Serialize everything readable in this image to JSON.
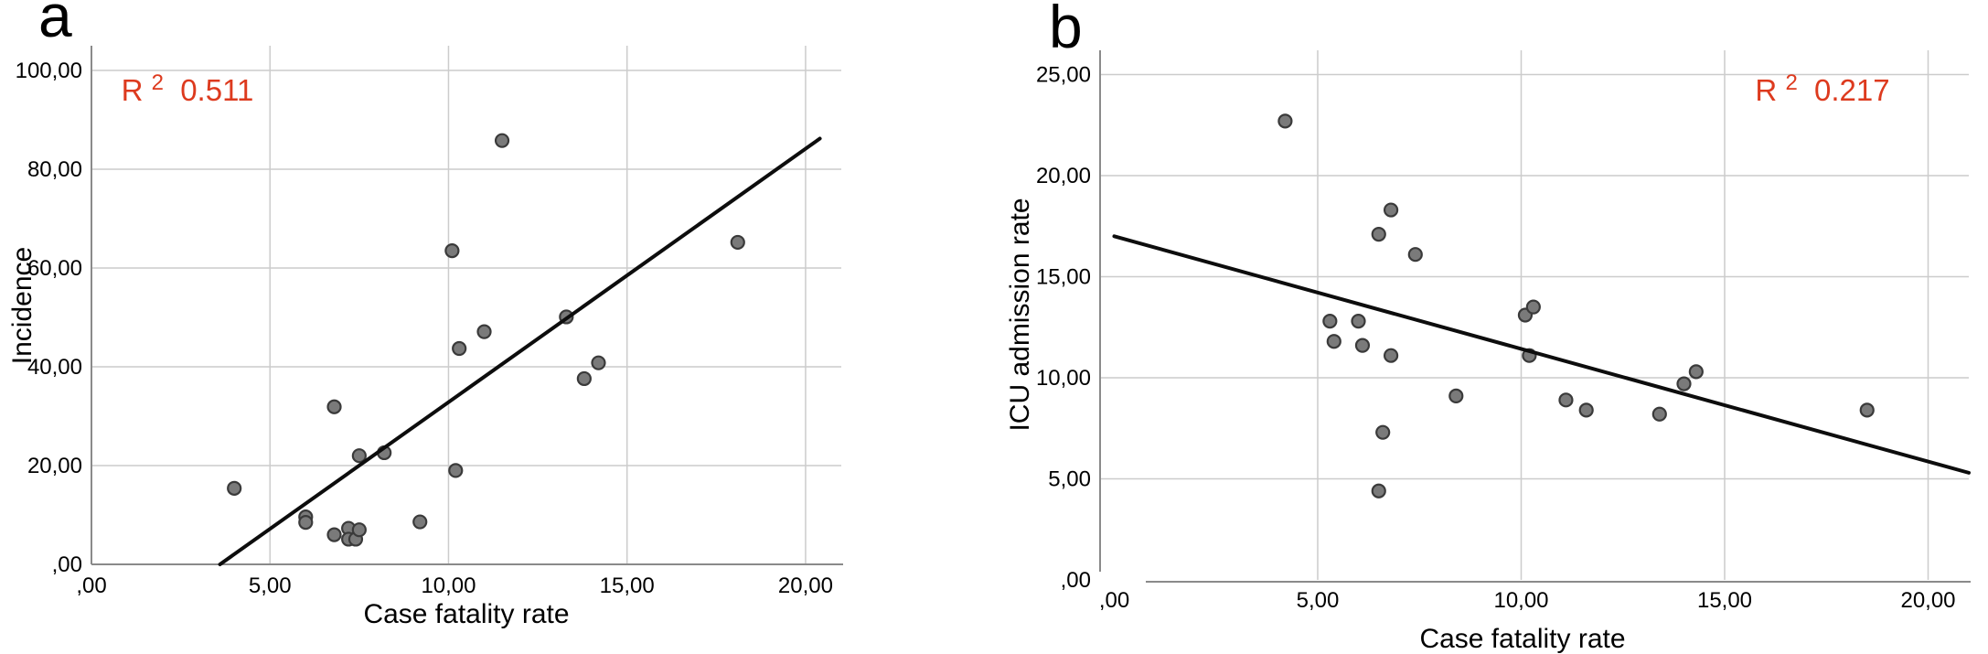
{
  "figure": {
    "background": "#ffffff",
    "accent_red": "#dd3a1e",
    "point_fill": "#7a7a7a",
    "point_stroke": "#3a3a3a",
    "grid_color": "#cccccc",
    "axis_color": "#8a8a8a",
    "fit_line_color": "#0d0d0d",
    "text_color": "#000000"
  },
  "chart_data": [
    {
      "type": "scatter",
      "panel_letter": "a",
      "annotation": {
        "base": "R",
        "sup": "2",
        "value": "0.511"
      },
      "xlabel": "Case fatality rate",
      "ylabel": "Incidence",
      "xlim": [
        0,
        21
      ],
      "ylim": [
        0,
        105
      ],
      "grid": true,
      "legend": null,
      "xticks": [
        {
          "v": 0,
          "label": ",00"
        },
        {
          "v": 5,
          "label": "5,00"
        },
        {
          "v": 10,
          "label": "10,00"
        },
        {
          "v": 15,
          "label": "15,00"
        },
        {
          "v": 20,
          "label": "20,00"
        }
      ],
      "yticks": [
        {
          "v": 0,
          "label": ",00"
        },
        {
          "v": 20,
          "label": "20,00"
        },
        {
          "v": 40,
          "label": "40,00"
        },
        {
          "v": 60,
          "label": "60,00"
        },
        {
          "v": 80,
          "label": "80,00"
        },
        {
          "v": 100,
          "label": "100,00"
        }
      ],
      "points": [
        [
          4.0,
          15.4
        ],
        [
          6.0,
          9.6
        ],
        [
          6.0,
          8.5
        ],
        [
          6.8,
          6.0
        ],
        [
          6.8,
          31.9
        ],
        [
          7.2,
          7.3
        ],
        [
          7.2,
          5.1
        ],
        [
          7.4,
          5.1
        ],
        [
          7.5,
          7.0
        ],
        [
          7.5,
          22.0
        ],
        [
          8.2,
          22.6
        ],
        [
          9.2,
          8.6
        ],
        [
          10.1,
          63.5
        ],
        [
          10.2,
          19.0
        ],
        [
          10.3,
          43.7
        ],
        [
          11.0,
          47.1
        ],
        [
          11.5,
          85.8
        ],
        [
          13.3,
          50.1
        ],
        [
          13.8,
          37.6
        ],
        [
          14.2,
          40.8
        ],
        [
          18.1,
          65.2
        ]
      ],
      "fit_line": {
        "x1": 3.6,
        "y1": 0,
        "x2": 20.4,
        "y2": 86.2
      }
    },
    {
      "type": "scatter",
      "panel_letter": "b",
      "annotation": {
        "base": "R",
        "sup": "2",
        "value": "0.217"
      },
      "xlabel": "Case fatality rate",
      "ylabel": "ICU admission rate",
      "xlim": [
        0,
        21
      ],
      "ylim": [
        0,
        26.2
      ],
      "grid": true,
      "legend": null,
      "xticks": [
        {
          "v": 0,
          "label": ",00"
        },
        {
          "v": 5,
          "label": "5,00"
        },
        {
          "v": 10,
          "label": "10,00"
        },
        {
          "v": 15,
          "label": "15,00"
        },
        {
          "v": 20,
          "label": "20,00"
        }
      ],
      "yticks": [
        {
          "v": 0,
          "label": ",00"
        },
        {
          "v": 5,
          "label": "5,00"
        },
        {
          "v": 10,
          "label": "10,00"
        },
        {
          "v": 15,
          "label": "15,00"
        },
        {
          "v": 20,
          "label": "20,00"
        },
        {
          "v": 25,
          "label": "25,00"
        }
      ],
      "points": [
        [
          4.2,
          22.7
        ],
        [
          5.3,
          12.8
        ],
        [
          5.4,
          11.8
        ],
        [
          6.0,
          12.8
        ],
        [
          6.1,
          11.6
        ],
        [
          6.5,
          17.1
        ],
        [
          6.5,
          4.4
        ],
        [
          6.6,
          7.3
        ],
        [
          6.8,
          18.3
        ],
        [
          6.8,
          11.1
        ],
        [
          7.4,
          16.1
        ],
        [
          8.4,
          9.1
        ],
        [
          10.1,
          13.1
        ],
        [
          10.2,
          11.1
        ],
        [
          10.3,
          13.5
        ],
        [
          11.1,
          8.9
        ],
        [
          11.6,
          8.4
        ],
        [
          13.4,
          8.2
        ],
        [
          14.0,
          9.7
        ],
        [
          14.3,
          10.3
        ],
        [
          18.5,
          8.4
        ]
      ],
      "fit_line": {
        "x1": 0,
        "y1": 17.0,
        "x2": 21,
        "y2": 5.3
      }
    }
  ]
}
